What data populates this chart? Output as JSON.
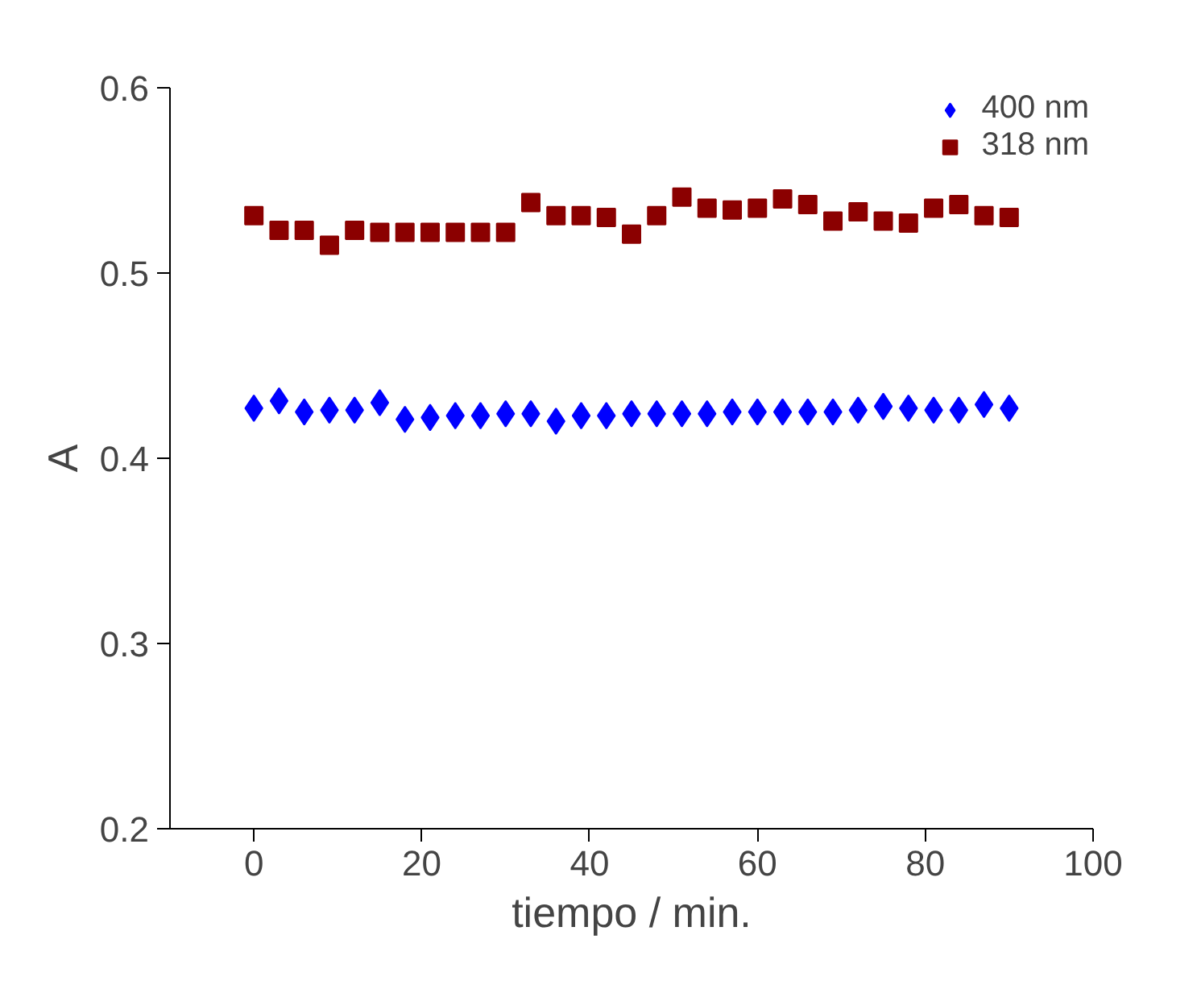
{
  "chart_data": {
    "type": "scatter",
    "xlabel": "tiempo / min.",
    "ylabel": "A",
    "x": [
      0,
      3,
      6,
      9,
      12,
      15,
      18,
      21,
      24,
      27,
      30,
      33,
      36,
      39,
      42,
      45,
      48,
      51,
      54,
      57,
      60,
      63,
      66,
      69,
      72,
      75,
      78,
      81,
      84,
      87,
      90
    ],
    "series": [
      {
        "name": "400 nm",
        "color": "#0000ff",
        "marker": "diamond",
        "values": [
          0.427,
          0.431,
          0.425,
          0.426,
          0.426,
          0.43,
          0.421,
          0.422,
          0.423,
          0.423,
          0.424,
          0.424,
          0.42,
          0.423,
          0.423,
          0.424,
          0.424,
          0.424,
          0.424,
          0.425,
          0.425,
          0.425,
          0.425,
          0.425,
          0.426,
          0.428,
          0.427,
          0.426,
          0.426,
          0.429,
          0.427
        ]
      },
      {
        "name": "318 nm",
        "color": "#8b0000",
        "marker": "square",
        "values": [
          0.531,
          0.523,
          0.523,
          0.515,
          0.523,
          0.522,
          0.522,
          0.522,
          0.522,
          0.522,
          0.522,
          0.538,
          0.531,
          0.531,
          0.53,
          0.521,
          0.531,
          0.541,
          0.535,
          0.534,
          0.535,
          0.54,
          0.537,
          0.528,
          0.533,
          0.528,
          0.527,
          0.535,
          0.537,
          0.531,
          0.53
        ]
      }
    ],
    "xlim": [
      -10,
      100
    ],
    "xticks": [
      0,
      20,
      40,
      60,
      80,
      100
    ],
    "ylim": [
      0.2,
      0.6
    ],
    "yticks": [
      {
        "value": 0.2,
        "label": "0.2"
      },
      {
        "value": 0.3,
        "label": "0.3"
      },
      {
        "value": 0.4,
        "label": "0.4"
      },
      {
        "value": 0.5,
        "label": "0.5"
      },
      {
        "value": 0.6,
        "label": "0.6"
      }
    ],
    "grid": false,
    "legend": "top right"
  }
}
